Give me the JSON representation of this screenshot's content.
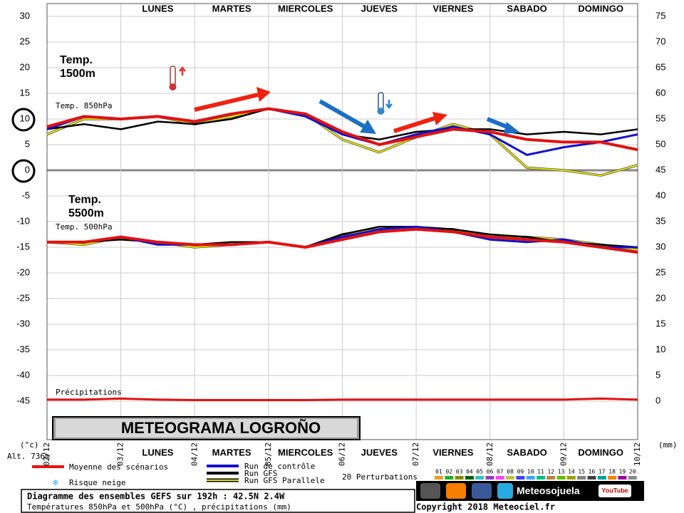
{
  "chart_data": {
    "type": "line",
    "title": "METEOGRAMA LOGROÑO",
    "annotations": [
      "Temp.",
      "1500m",
      "Temp.",
      "5500m",
      "Temp. 850hPa",
      "Temp. 500hPa",
      "Précipitations"
    ],
    "y_unit": "(°c)",
    "altitude": "Alt. 736m",
    "y2_unit": "(mm)",
    "days_top": [
      "LUNES",
      "MARTES",
      "MIERCOLES",
      "JUEVES",
      "VIERNES",
      "SABADO",
      "DOMINGO"
    ],
    "days_bottom": [
      "LUNES",
      "MARTES",
      "MIERCOLES",
      "JUEVES",
      "VIERNES",
      "SABADO",
      "DOMINGO"
    ],
    "xlim": [
      0,
      192
    ],
    "xticks": [
      {
        "value": 0,
        "label": "02/12"
      },
      {
        "value": 24,
        "label": "03/12"
      },
      {
        "value": 48,
        "label": "04/12"
      },
      {
        "value": 72,
        "label": "05/12"
      },
      {
        "value": 96,
        "label": "06/12"
      },
      {
        "value": 120,
        "label": "07/12"
      },
      {
        "value": 144,
        "label": "08/12"
      },
      {
        "value": 168,
        "label": "09/12"
      },
      {
        "value": 192,
        "label": "10/12"
      }
    ],
    "ylim": [
      -52.5,
      32.5
    ],
    "yticks": [
      30,
      25,
      20,
      15,
      10,
      5,
      0,
      -5,
      -10,
      -15,
      -20,
      -25,
      -30,
      -35,
      -40,
      -45
    ],
    "y2lim": [
      -7.5,
      77.5
    ],
    "y2ticks": [
      75,
      70,
      65,
      60,
      55,
      50,
      45,
      40,
      35,
      30,
      25,
      20,
      15,
      10,
      5,
      0
    ],
    "grid": true,
    "x": [
      0,
      12,
      24,
      36,
      48,
      60,
      72,
      84,
      96,
      108,
      120,
      132,
      144,
      156,
      168,
      180,
      192
    ],
    "series": [
      {
        "name": "Moyenne des scénarios",
        "color": "#e11111",
        "width": 4,
        "values": [
          8.5,
          10.5,
          10,
          10.5,
          9.5,
          11,
          12,
          11,
          7.5,
          5,
          6.5,
          8,
          7.5,
          6,
          5.5,
          5.5,
          4
        ],
        "values_500": [
          -14,
          -14,
          -13,
          -14,
          -14.5,
          -14.5,
          -14,
          -15,
          -13.5,
          -12,
          -11.5,
          -12,
          -13,
          -13.5,
          -14,
          -15,
          -16
        ]
      },
      {
        "name": "Run de contrôle",
        "color": "#1111cc",
        "width": 3,
        "values": [
          8,
          10.5,
          10,
          10.5,
          9.5,
          11,
          12,
          10.5,
          7,
          5,
          7,
          8.5,
          7,
          3,
          4.5,
          5.5,
          7
        ],
        "values_500": [
          -14,
          -14,
          -13,
          -14.5,
          -14.5,
          -14.5,
          -14,
          -15,
          -13,
          -11.5,
          -11,
          -12,
          -13.5,
          -14,
          -13.5,
          -15,
          -15
        ]
      },
      {
        "name": "Run GFS",
        "color": "#000000",
        "width": 2.5,
        "values": [
          8,
          9,
          8,
          9.5,
          9,
          10,
          12,
          11,
          7,
          6,
          7.5,
          8,
          8,
          7,
          7.5,
          7,
          8
        ],
        "values_500": [
          -14,
          -14,
          -13.5,
          -14,
          -14.5,
          -14,
          -14,
          -15,
          -12.5,
          -11,
          -11,
          -11.5,
          -12.5,
          -13,
          -14,
          -14.5,
          -15
        ]
      },
      {
        "name": "Run GFS Parallele",
        "color": "#e6e000",
        "width": 2,
        "values": [
          7,
          10,
          10,
          10.5,
          9,
          10.5,
          12,
          11,
          6,
          3.5,
          6.5,
          9,
          7,
          0.5,
          0,
          -1,
          1
        ],
        "values_500": [
          -14,
          -14.5,
          -13,
          -14,
          -15,
          -14.5,
          -14,
          -15,
          -12.5,
          -11.5,
          -11.5,
          -11.5,
          -13,
          -13,
          -13.5,
          -14.5,
          -15.5
        ]
      }
    ],
    "precipitation": {
      "name": "Précipitations",
      "color": "#e11111",
      "axis": "y2",
      "values": [
        0.3,
        0.3,
        0.5,
        0.3,
        0.2,
        0.2,
        0.2,
        0.2,
        0.3,
        0.3,
        0.3,
        0.3,
        0.3,
        0.3,
        0.3,
        0.5,
        0.3
      ]
    },
    "snow_risk_label": "Risque neige",
    "perturbations_label": "20 Perturbations",
    "perturbation_labels": [
      "01",
      "02",
      "03",
      "04",
      "05",
      "06",
      "07",
      "08",
      "09",
      "10",
      "11",
      "12",
      "13",
      "14",
      "15",
      "16",
      "17",
      "18",
      "19",
      "20"
    ],
    "brand": "Meteosojuela",
    "youtube": "YouTube",
    "footer_title": "Diagramme des ensembles GEFS sur 192h : 42.5N 2.4W",
    "footer_subtitle": "Températures 850hPa et 500hPa (°C) , précipitations (mm)",
    "copyright": "Copyright 2018 Meteociel.fr"
  }
}
